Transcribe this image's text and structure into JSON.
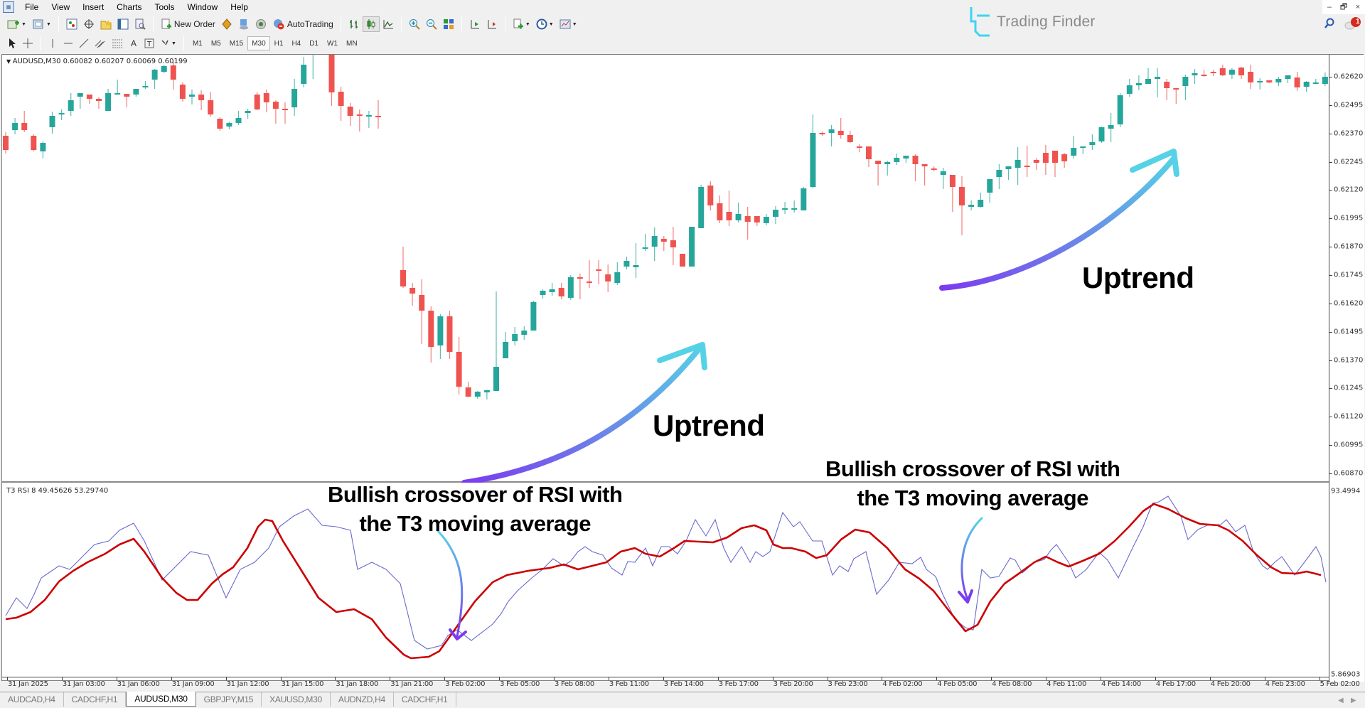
{
  "menu": {
    "items": [
      "File",
      "View",
      "Insert",
      "Charts",
      "Tools",
      "Window",
      "Help"
    ]
  },
  "window_controls": {
    "minimize": "‒",
    "restore": "🗗",
    "close": "×"
  },
  "toolbar": {
    "new_order_label": "New Order",
    "autotrading_label": "AutoTrading",
    "timeframes": [
      "M1",
      "M5",
      "M15",
      "M30",
      "H1",
      "H4",
      "D1",
      "W1",
      "MN"
    ],
    "active_timeframe": "M30"
  },
  "brand": {
    "name": "Trading Finder",
    "color": "#3dd6f0"
  },
  "notifications": {
    "count": "1"
  },
  "chart": {
    "legend": "AUDUSD,M30  0.60082 0.60207 0.60069 0.60199",
    "symbol": "AUDUSD",
    "timeframe": "M30",
    "ohlc": {
      "open": "0.60082",
      "high": "0.60207",
      "low": "0.60069",
      "close": "0.60199"
    },
    "bull_color": "#26a69a",
    "bear_color": "#ef5350"
  },
  "price_axis": {
    "labels": [
      "0.62620",
      "0.62495",
      "0.62370",
      "0.62245",
      "0.62120",
      "0.61995",
      "0.61870",
      "0.61745",
      "0.61620",
      "0.61495",
      "0.61370",
      "0.61245",
      "0.61120",
      "0.60995",
      "0.60870"
    ]
  },
  "rsi": {
    "legend": "T3 RSI 8 49.45626 53.29740",
    "name": "T3 RSI",
    "period": "8",
    "value_rsi": "49.45626",
    "value_t3": "53.29740",
    "axis_max": "93.4994",
    "axis_min": "5.86903",
    "rsi_color": "#6a6acd",
    "t3_color": "#cc0000"
  },
  "time_axis": {
    "labels": [
      "31 Jan 2025",
      "31 Jan 03:00",
      "31 Jan 06:00",
      "31 Jan 09:00",
      "31 Jan 12:00",
      "31 Jan 15:00",
      "31 Jan 18:00",
      "31 Jan 21:00",
      "3 Feb 02:00",
      "3 Feb 05:00",
      "3 Feb 08:00",
      "3 Feb 11:00",
      "3 Feb 14:00",
      "3 Feb 17:00",
      "3 Feb 20:00",
      "3 Feb 23:00",
      "4 Feb 02:00",
      "4 Feb 05:00",
      "4 Feb 08:00",
      "4 Feb 11:00",
      "4 Feb 14:00",
      "4 Feb 17:00",
      "4 Feb 20:00",
      "4 Feb 23:00",
      "5 Feb 02:00"
    ]
  },
  "annotations": {
    "uptrend_1": "Uptrend",
    "uptrend_2": "Uptrend",
    "crossover_1_line1": "Bullish crossover of RSI with",
    "crossover_1_line2": "the T3 moving average",
    "crossover_2_line1": "Bullish crossover of RSI with",
    "crossover_2_line2": "the T3 moving average"
  },
  "tabs": [
    {
      "label": "AUDCAD,H4",
      "active": false
    },
    {
      "label": "CADCHF,H1",
      "active": false
    },
    {
      "label": "AUDUSD,M30",
      "active": true
    },
    {
      "label": "GBPJPY,M15",
      "active": false
    },
    {
      "label": "XAUUSD,M30",
      "active": false
    },
    {
      "label": "AUDNZD,H4",
      "active": false
    },
    {
      "label": "CADCHF,H1",
      "active": false
    }
  ],
  "chart_data": {
    "type": "candlestick",
    "title": "AUDUSD,M30",
    "ylim": [
      0.6082,
      0.6268
    ],
    "candles_segment_1_ypx": [
      [
        190,
        210,
        185,
        215
      ],
      [
        182,
        172,
        165,
        188
      ],
      [
        172,
        182,
        155,
        185
      ],
      [
        190,
        210,
        188,
        212
      ],
      [
        212,
        200,
        198,
        222
      ],
      [
        178,
        162,
        156,
        187
      ],
      [
        160,
        158,
        153,
        168
      ],
      [
        155,
        140,
        130,
        162
      ],
      [
        135,
        130,
        130,
        152
      ],
      [
        132,
        138,
        132,
        145
      ],
      [
        138,
        141,
        136,
        152
      ],
      [
        155,
        130,
        124,
        150
      ],
      [
        131,
        130,
        111,
        132
      ],
      [
        131,
        135,
        131,
        150
      ],
      [
        132,
        124,
        124,
        135
      ],
      [
        121,
        120,
        113,
        124
      ],
      [
        111,
        97,
        96,
        124
      ],
      [
        100,
        92,
        90,
        102
      ],
      [
        91,
        111,
        86,
        125
      ],
      [
        118,
        138,
        115,
        142
      ],
      [
        135,
        132,
        125,
        146
      ],
      [
        132,
        140,
        126,
        154
      ],
      [
        140,
        160,
        128,
        163
      ],
      [
        166,
        180,
        164,
        183
      ],
      [
        177,
        172,
        170,
        181
      ],
      [
        172,
        165,
        155,
        175
      ],
      [
        158,
        155,
        152,
        166
      ],
      [
        132,
        153,
        129,
        154
      ],
      [
        130,
        143,
        125,
        157
      ],
      [
        142,
        152,
        140,
        173
      ],
      [
        152,
        152,
        143,
        173
      ],
      [
        150,
        124,
        110,
        162
      ],
      [
        117,
        90,
        79,
        122
      ],
      [
        61,
        16,
        8,
        110
      ],
      [
        17,
        31,
        10,
        49
      ],
      [
        31,
        129,
        27,
        148
      ],
      [
        128,
        148,
        121,
        169
      ],
      [
        149,
        162,
        144,
        176
      ],
      [
        160,
        160,
        153,
        184
      ],
      [
        162,
        161,
        155,
        179
      ],
      [
        162,
        163,
        140,
        180
      ]
    ],
    "segment_1_x_start": 7,
    "candle_spacing_px": 13.1,
    "candles_segment_2_ypx": [
      [
        379,
        402,
        346,
        404
      ],
      [
        404,
        412,
        397,
        429
      ],
      [
        414,
        436,
        392,
        483
      ],
      [
        436,
        487,
        430,
        509
      ],
      [
        485,
        444,
        441,
        504
      ],
      [
        444,
        494,
        436,
        504
      ],
      [
        494,
        543,
        473,
        554
      ],
      [
        544,
        557,
        536,
        558
      ],
      [
        557,
        550,
        549,
        560
      ],
      [
        551,
        548,
        547,
        561
      ],
      [
        549,
        515,
        409,
        515
      ],
      [
        503,
        480,
        466,
        495
      ],
      [
        479,
        469,
        459,
        485
      ],
      [
        470,
        464,
        458,
        477
      ],
      [
        464,
        424,
        422,
        462
      ],
      [
        414,
        408,
        406,
        419
      ],
      [
        410,
        406,
        397,
        415
      ],
      [
        404,
        416,
        397,
        420
      ],
      [
        418,
        389,
        386,
        421
      ],
      [
        389,
        389,
        384,
        420
      ],
      [
        395,
        395,
        365,
        404
      ],
      [
        378,
        378,
        365,
        399
      ],
      [
        385,
        395,
        371,
        410
      ],
      [
        397,
        382,
        368,
        400
      ],
      [
        374,
        366,
        360,
        378
      ],
      [
        375,
        372,
        341,
        390
      ],
      [
        349,
        347,
        328,
        352
      ],
      [
        346,
        331,
        319,
        366
      ],
      [
        335,
        339,
        331,
        352
      ],
      [
        337,
        347,
        318,
        372
      ],
      [
        356,
        374,
        359,
        373
      ],
      [
        374,
        318,
        318,
        374
      ],
      [
        320,
        262,
        259,
        318
      ],
      [
        260,
        288,
        254,
        295
      ],
      [
        285,
        309,
        274,
        313
      ],
      [
        297,
        309,
        267,
        317
      ],
      [
        309,
        300,
        284,
        312
      ],
      [
        303,
        311,
        290,
        336
      ],
      [
        303,
        312,
        309,
        317
      ],
      [
        313,
        304,
        300,
        316
      ],
      [
        304,
        294,
        289,
        314
      ],
      [
        294,
        292,
        283,
        300
      ],
      [
        293,
        292,
        281,
        298
      ],
      [
        295,
        264,
        262,
        292
      ],
      [
        262,
        186,
        160,
        264
      ],
      [
        186,
        186,
        184,
        190
      ],
      [
        186,
        181,
        175,
        205
      ],
      [
        183,
        189,
        165,
        194
      ],
      [
        189,
        199,
        183,
        200
      ],
      [
        205,
        205,
        202,
        213
      ],
      [
        205,
        223,
        205,
        234
      ],
      [
        225,
        230,
        229,
        260
      ],
      [
        230,
        227,
        225,
        246
      ],
      [
        227,
        221,
        215,
        231
      ],
      [
        222,
        218,
        220,
        228
      ],
      [
        218,
        230,
        216,
        254
      ],
      [
        230,
        233,
        243,
        260
      ],
      [
        236,
        236,
        233,
        240
      ],
      [
        245,
        240,
        235,
        265
      ],
      [
        245,
        262,
        251,
        297
      ],
      [
        262,
        288,
        247,
        330
      ],
      [
        290,
        287,
        281,
        295
      ],
      [
        290,
        280,
        270,
        291
      ],
      [
        270,
        251,
        251,
        284
      ],
      [
        248,
        238,
        230,
        265
      ],
      [
        237,
        233,
        233,
        252
      ],
      [
        235,
        224,
        206,
        259
      ],
      [
        232,
        232,
        204,
        248
      ],
      [
        224,
        228,
        221,
        238
      ],
      [
        214,
        228,
        203,
        245
      ],
      [
        211,
        228,
        211,
        248
      ],
      [
        216,
        226,
        214,
        235
      ],
      [
        218,
        207,
        190,
        222
      ],
      [
        207,
        205,
        205,
        216
      ],
      [
        203,
        199,
        188,
        210
      ],
      [
        198,
        178,
        177,
        200
      ],
      [
        180,
        175,
        158,
        199
      ],
      [
        174,
        133,
        130,
        178
      ],
      [
        131,
        119,
        110,
        135
      ],
      [
        119,
        116,
        105,
        126
      ],
      [
        117,
        110,
        95,
        117
      ],
      [
        110,
        107,
        95,
        136
      ],
      [
        114,
        123,
        110,
        140
      ],
      [
        123,
        123,
        130,
        145
      ],
      [
        120,
        107,
        104,
        140
      ],
      [
        105,
        102,
        96,
        117
      ],
      [
        104,
        104,
        97,
        107
      ],
      [
        100,
        100,
        97,
        106
      ],
      [
        95,
        105,
        90,
        106
      ],
      [
        104,
        97,
        95,
        110
      ],
      [
        94,
        105,
        93,
        110
      ],
      [
        100,
        115,
        90,
        124
      ],
      [
        115,
        113,
        109,
        125
      ],
      [
        112,
        115,
        112,
        116
      ],
      [
        115,
        110,
        107,
        120
      ],
      [
        110,
        105,
        105,
        116
      ],
      [
        108,
        122,
        100,
        127
      ],
      [
        121,
        114,
        113,
        128
      ],
      [
        117,
        115,
        110,
        117
      ],
      [
        117,
        107,
        101,
        120
      ],
      [
        103,
        141,
        103,
        141
      ]
    ],
    "segment_2_x_start": 566,
    "rsi_series_desc": "RSI(8) thin blue line and T3 smoothing (thick red line), range 5.86903–93.4994"
  }
}
